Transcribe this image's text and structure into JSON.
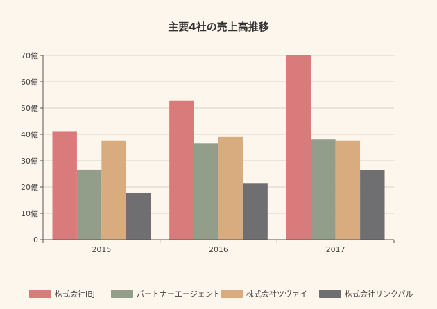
{
  "chart_data": {
    "type": "bar",
    "title": "主要4社の売上高推移",
    "categories": [
      "2015",
      "2016",
      "2017"
    ],
    "series": [
      {
        "name": "株式会社IBJ",
        "values": [
          41.2,
          52.7,
          70.0
        ],
        "color": "#d97b7b"
      },
      {
        "name": "パートナーエージェント",
        "values": [
          26.6,
          36.5,
          38.1
        ],
        "color": "#939e8a"
      },
      {
        "name": "株式会社ツヴァイ",
        "values": [
          37.7,
          39.0,
          37.7
        ],
        "color": "#d9ac80"
      },
      {
        "name": "株式会社リンクバル",
        "values": [
          17.9,
          21.5,
          26.5
        ],
        "color": "#6f6f72"
      }
    ],
    "ylim": [
      0,
      70
    ],
    "yticks": [
      0,
      10,
      20,
      30,
      40,
      50,
      60,
      70
    ],
    "ytick_labels": [
      "0",
      "10億",
      "20億",
      "30億",
      "40億",
      "50億",
      "60億",
      "70億"
    ],
    "grid": true,
    "legend_position": "bottom"
  }
}
